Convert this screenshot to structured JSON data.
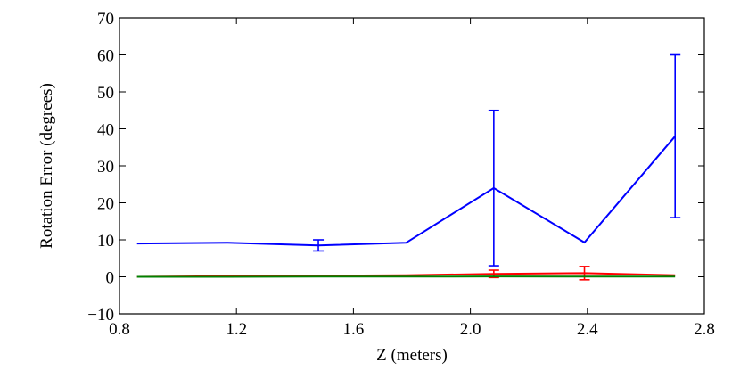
{
  "chart_data": {
    "type": "line",
    "title": "",
    "xlabel": "Z (meters)",
    "ylabel": "Rotation Error (degrees)",
    "xlim": [
      0.8,
      2.8
    ],
    "ylim": [
      -10,
      70
    ],
    "xticks": [
      "0.8",
      "1.2",
      "1.6",
      "2.0",
      "2.4",
      "2.8"
    ],
    "yticks": [
      "−10",
      "0",
      "10",
      "20",
      "30",
      "40",
      "50",
      "60",
      "70"
    ],
    "xtick_values": [
      0.8,
      1.2,
      1.6,
      2.0,
      2.4,
      2.8
    ],
    "ytick_values": [
      -10,
      0,
      10,
      20,
      30,
      40,
      50,
      60,
      70
    ],
    "grid": false,
    "legend": "none",
    "series": [
      {
        "color": "#0000ff",
        "x": [
          0.86,
          1.17,
          1.48,
          1.78,
          2.08,
          2.39,
          2.7
        ],
        "y": [
          9.0,
          9.2,
          8.5,
          9.2,
          24.0,
          9.3,
          38.0
        ],
        "err": [
          0,
          0,
          1.5,
          0,
          21.0,
          0,
          22.0
        ]
      },
      {
        "color": "#ff0000",
        "x": [
          0.86,
          1.17,
          1.48,
          1.78,
          2.08,
          2.39,
          2.7
        ],
        "y": [
          0.0,
          0.2,
          0.3,
          0.4,
          0.8,
          1.0,
          0.4
        ],
        "err": [
          0,
          0,
          0,
          0,
          1.0,
          1.8,
          0
        ]
      },
      {
        "color": "#008000",
        "x": [
          0.86,
          1.17,
          1.48,
          1.78,
          2.08,
          2.39,
          2.7
        ],
        "y": [
          0.0,
          0.0,
          0.05,
          0.05,
          0.1,
          0.05,
          0.05
        ],
        "err": [
          0,
          0,
          0,
          0,
          0,
          0,
          0
        ]
      }
    ]
  }
}
